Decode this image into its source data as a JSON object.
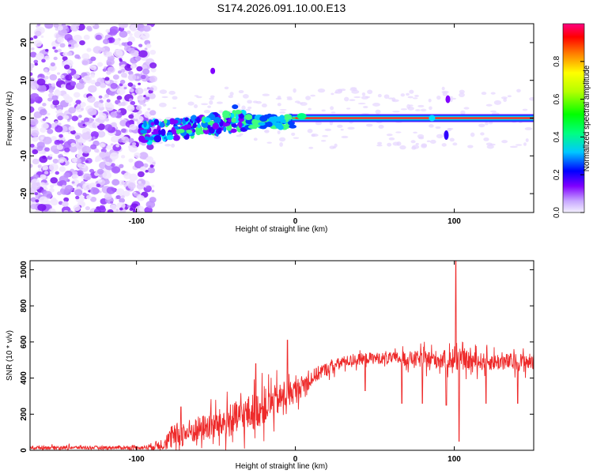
{
  "title": "S174.2026.091.10.00.E13",
  "chart_data": [
    {
      "type": "heatmap",
      "xlabel": "Height of straight line (km)",
      "ylabel": "Frequency (Hz)",
      "xlim": [
        -167,
        150
      ],
      "ylim": [
        -25,
        25
      ],
      "xticks": [
        -100,
        0,
        100
      ],
      "yticks": [
        -20,
        -10,
        0,
        10,
        20
      ],
      "colorbar": {
        "label": "Normalized spectral amplitude",
        "range": [
          0,
          1
        ],
        "ticks": [
          "0.0",
          "0.2",
          "0.4",
          "0.6",
          "0.8"
        ],
        "tick_values": [
          0,
          0.2,
          0.4,
          0.6,
          0.8
        ]
      },
      "features": {
        "noise_region_x": [
          -167,
          -97
        ],
        "signal_start_x": -97,
        "signal_end_x": 150,
        "signal_center_freq_hz": 0
      }
    },
    {
      "type": "line",
      "xlabel": "Height of straight line (km)",
      "ylabel": "SNR (10 * v/v)",
      "xlim": [
        -167,
        150
      ],
      "ylim": [
        0,
        1050
      ],
      "xticks": [
        -100,
        0,
        100
      ],
      "yticks": [
        0,
        200,
        400,
        600,
        800,
        1000
      ],
      "series": [
        {
          "name": "SNR",
          "color": "#ee2a2a",
          "envelope": {
            "x": [
              -167,
              -120,
              -95,
              -85,
              -75,
              -60,
              -45,
              -30,
              -15,
              0,
              15,
              30,
              45,
              60,
              80,
              100,
              120,
              150
            ],
            "base": [
              15,
              15,
              15,
              30,
              80,
              120,
              150,
              200,
              260,
              330,
              430,
              490,
              510,
              510,
              505,
              500,
              490,
              490
            ],
            "amp": [
              12,
              12,
              14,
              40,
              90,
              90,
              110,
              130,
              120,
              80,
              50,
              40,
              40,
              40,
              60,
              70,
              60,
              60
            ]
          },
          "peaks": [
            {
              "x": -72,
              "y": 240
            },
            {
              "x": -25,
              "y": 480
            },
            {
              "x": -5,
              "y": 610
            },
            {
              "x": 101,
              "y": 1050
            },
            {
              "x": 103,
              "y": 1050
            }
          ],
          "dips": [
            {
              "x": 44,
              "y": 330
            },
            {
              "x": 67,
              "y": 260
            },
            {
              "x": 80,
              "y": 260
            },
            {
              "x": 95,
              "y": 250
            },
            {
              "x": 103,
              "y": 50
            },
            {
              "x": 120,
              "y": 260
            },
            {
              "x": 140,
              "y": 260
            }
          ]
        }
      ]
    }
  ]
}
